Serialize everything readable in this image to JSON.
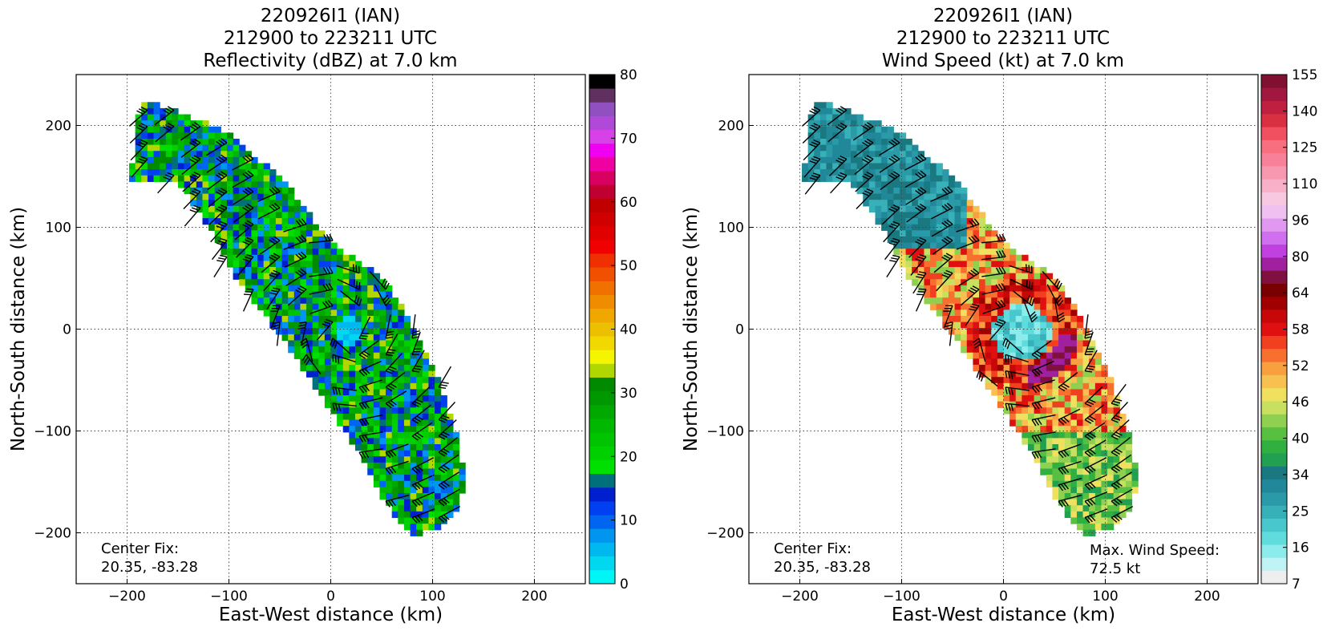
{
  "panels": [
    {
      "title_lines": [
        "220926I1 (IAN)",
        "212900 to 223211 UTC",
        "Reflectivity (dBZ) at 7.0 km"
      ],
      "xlabel": "East-West distance (km)",
      "ylabel": "North-South distance (km)",
      "xticks": [
        "−200",
        "−100",
        "0",
        "100",
        "200"
      ],
      "yticks": [
        "200",
        "100",
        "0",
        "−100",
        "−200"
      ],
      "center_fix_label": "Center Fix:",
      "center_fix_value": "20.35, -83.28",
      "colorbar_labels": [
        "0",
        "10",
        "20",
        "30",
        "40",
        "50",
        "60",
        "70",
        "80"
      ]
    },
    {
      "title_lines": [
        "220926I1 (IAN)",
        "212900 to 223211 UTC",
        "Wind Speed (kt) at 7.0 km"
      ],
      "xlabel": "East-West distance (km)",
      "ylabel": "North-South distance (km)",
      "xticks": [
        "−200",
        "−100",
        "0",
        "100",
        "200"
      ],
      "yticks": [
        "200",
        "100",
        "0",
        "−100",
        "−200"
      ],
      "center_fix_label": "Center Fix:",
      "center_fix_value": "20.35, -83.28",
      "max_wind_label": "Max. Wind Speed:",
      "max_wind_value": "72.5 kt",
      "colorbar_labels": [
        "7",
        "16",
        "25",
        "34",
        "40",
        "46",
        "52",
        "58",
        "64",
        "80",
        "96",
        "110",
        "125",
        "140",
        "155"
      ]
    }
  ],
  "chart_data": [
    {
      "type": "heatmap",
      "title": "220926I1 (IAN) 212900 to 223211 UTC Reflectivity (dBZ) at 7.0 km",
      "xlabel": "East-West distance (km)",
      "ylabel": "North-South distance (km)",
      "xlim": [
        -250,
        250
      ],
      "ylim": [
        -250,
        250
      ],
      "grid": true,
      "colorbar": {
        "min": 0,
        "max": 80,
        "ticks": [
          0,
          10,
          20,
          30,
          40,
          50,
          60,
          70,
          80
        ],
        "colors": [
          "#00f5f5",
          "#00d8f0",
          "#00b8f0",
          "#0096f0",
          "#0066f0",
          "#0040f0",
          "#0020d0",
          "#00707a",
          "#00e000",
          "#00d000",
          "#00c400",
          "#00b800",
          "#00a800",
          "#009800",
          "#008a00",
          "#b0d800",
          "#f5f500",
          "#f0d800",
          "#ecc000",
          "#f0a800",
          "#f08c00",
          "#f07000",
          "#f05000",
          "#f03000",
          "#f00000",
          "#e00000",
          "#d00000",
          "#c00000",
          "#c00030",
          "#d80060",
          "#f000a0",
          "#f000f0",
          "#d840e8",
          "#b048d8",
          "#9050c0",
          "#603060",
          "#000000"
        ]
      },
      "center_fix": [
        20.35,
        -83.28
      ]
    },
    {
      "type": "heatmap",
      "title": "220926I1 (IAN) 212900 to 223211 UTC Wind Speed (kt) at 7.0 km",
      "xlabel": "East-West distance (km)",
      "ylabel": "North-South distance (km)",
      "xlim": [
        -250,
        250
      ],
      "ylim": [
        -250,
        250
      ],
      "grid": true,
      "colorbar": {
        "min": 0,
        "max": 160,
        "ticks": [
          7,
          16,
          25,
          34,
          40,
          46,
          52,
          58,
          64,
          80,
          96,
          110,
          125,
          140,
          155
        ],
        "colors": [
          "#eeeeee",
          "#c0f4f4",
          "#8cecec",
          "#60dcdc",
          "#48c8cc",
          "#38b0b8",
          "#2a9aa8",
          "#208898",
          "#1a7880",
          "#20a050",
          "#30b040",
          "#58c040",
          "#90d050",
          "#c8e060",
          "#f0e060",
          "#f8c050",
          "#f8a040",
          "#f87030",
          "#f04020",
          "#e01010",
          "#c80808",
          "#a00000",
          "#780000",
          "#801040",
          "#a020a0",
          "#c040e0",
          "#d070f0",
          "#e098f0",
          "#f0c0f0",
          "#f8c8e0",
          "#f8b0c8",
          "#f898b0",
          "#f88098",
          "#f87080",
          "#f05060",
          "#d83040",
          "#c02040",
          "#a01840",
          "#801030"
        ]
      },
      "max_wind_speed_kt": 72.5,
      "center_fix": [
        20.35,
        -83.28
      ]
    }
  ]
}
